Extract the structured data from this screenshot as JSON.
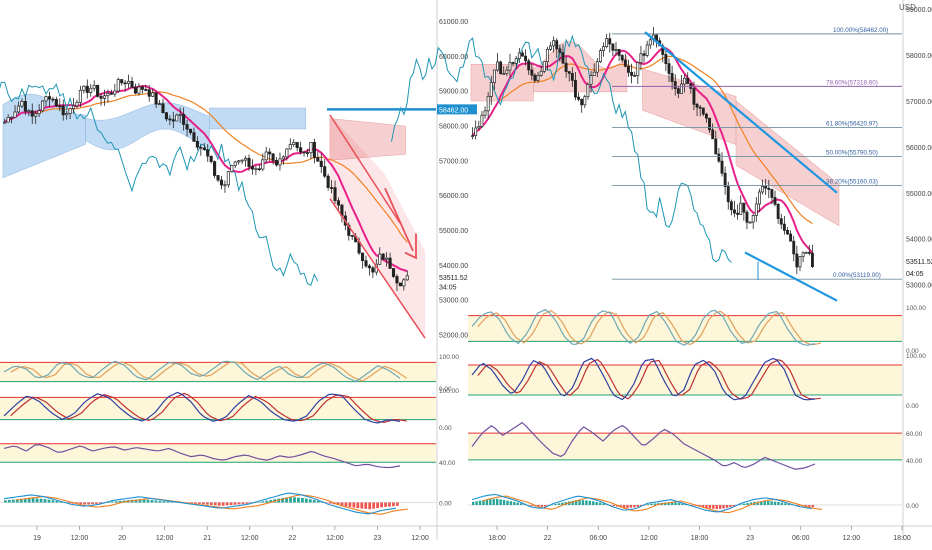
{
  "currency_label": "USD",
  "colors": {
    "up": "#2e2e2e",
    "down": "#2e2e2e",
    "tenkan": "#e8208a",
    "kijun": "#f08020",
    "chikou": "#1e96b4",
    "kumo_bull": "#bcd8f5",
    "kumo_bear": "#f6cccc",
    "channel": "#e8505a",
    "trend": "#1e96e0",
    "fib": "#7090a0",
    "stoch_k": "#6fa8b4",
    "stoch_d": "#e2a05a",
    "rsi": "#7050a0",
    "band_fill": "#fdf6d8",
    "level_hi": "#e83030",
    "level_lo": "#20a070",
    "macd_line": "#1e90d0",
    "macd_signal": "#f08020",
    "hist_pos": "#26a69a",
    "hist_neg": "#ef5350"
  },
  "chart_data": [
    {
      "type": "candlestick",
      "title": "",
      "panel": "left-main",
      "y_ticks": [
        "61000.00",
        "60000.00",
        "59000.00",
        "58000.00",
        "57000.00",
        "56000.00",
        "55000.00",
        "54000.00",
        "53000.00",
        "52000.00"
      ],
      "ylim": [
        51500,
        61600
      ],
      "x_ticks": [
        "19",
        "12:00",
        "20",
        "12:00",
        "21",
        "12:00",
        "22",
        "12:00",
        "23",
        "12:00"
      ],
      "price_marks": [
        {
          "label": "58462.00",
          "value": 58462,
          "highlight": true
        },
        {
          "label": "53511.52",
          "value": 53650,
          "highlight": false
        },
        {
          "label": "34:05",
          "value": 53380,
          "highlight": false
        }
      ],
      "close_path": [
        58100,
        58400,
        58700,
        58200,
        58500,
        58900,
        58600,
        58300,
        58700,
        59000,
        59100,
        58800,
        58900,
        59200,
        59300,
        59000,
        59100,
        58800,
        58400,
        58100,
        58300,
        57900,
        57500,
        57200,
        56600,
        56200,
        56900,
        57100,
        56900,
        56600,
        57200,
        56800,
        57300,
        57600,
        57100,
        57400,
        56900,
        56300,
        55700,
        55100,
        54600,
        54200,
        53700,
        54300,
        54000,
        53500,
        53600
      ],
      "channel_value_ref": {
        "label": "58462.00",
        "value": 58462
      }
    },
    {
      "type": "candlestick",
      "title": "",
      "panel": "right-main",
      "y_ticks": [
        "59000.00",
        "58000.00",
        "57000.00",
        "56000.00",
        "55000.00",
        "54000.00",
        "53000.00"
      ],
      "ylim": [
        52600,
        59200
      ],
      "x_ticks": [
        "18:00",
        "22",
        "06:00",
        "12:00",
        "18:00",
        "23",
        "06:00",
        "12:00",
        "18:00"
      ],
      "price_marks": [
        {
          "label": "53511.52",
          "value": 53511.52
        },
        {
          "label": "04:05",
          "value": 53250
        }
      ],
      "close_path": [
        56300,
        56600,
        57100,
        57800,
        57500,
        57900,
        58100,
        57700,
        57300,
        57900,
        58300,
        58100,
        57600,
        57200,
        56900,
        57500,
        58000,
        58300,
        58100,
        57800,
        57500,
        57800,
        58200,
        58500,
        58100,
        57600,
        57200,
        57600,
        57000,
        56900,
        56400,
        55800,
        55000,
        54500,
        54700,
        54300,
        54900,
        55200,
        54800,
        54300,
        54000,
        53400,
        53700,
        53500
      ],
      "fibonacci": [
        {
          "level": 1.0,
          "label": "100.00%(58462.00)",
          "value": 58462
        },
        {
          "level": 0.786,
          "label": "78.60%(57318.60)",
          "value": 57318.6
        },
        {
          "level": 0.618,
          "label": "61.80%(56420.97)",
          "value": 56420.97
        },
        {
          "level": 0.5,
          "label": "50.00%(55790.50)",
          "value": 55790.5
        },
        {
          "level": 0.382,
          "label": "38.20%(55160.03)",
          "value": 55160.03
        },
        {
          "level": 0.0,
          "label": "0.00%(53119.00)",
          "value": 53119
        }
      ]
    },
    {
      "type": "line",
      "panel": "right-stoch1",
      "y_ticks": [
        "100.00",
        "0.00"
      ],
      "ylim": [
        0,
        100
      ],
      "levels": [
        80,
        20
      ],
      "series": [
        {
          "values": [
            55,
            80,
            90,
            70,
            30,
            15,
            40,
            85,
            95,
            70,
            30,
            10,
            25,
            70,
            92,
            85,
            40,
            15,
            30,
            80,
            90,
            60,
            20,
            10,
            30,
            75,
            95,
            80,
            40,
            15,
            20,
            60,
            85,
            90,
            50,
            20,
            10,
            15
          ]
        }
      ]
    },
    {
      "type": "line",
      "panel": "right-stoch2",
      "y_ticks": [
        "100.00",
        "0.00"
      ],
      "ylim": [
        0,
        100
      ],
      "levels": [
        80,
        20
      ],
      "series": [
        {
          "values": [
            60,
            85,
            70,
            40,
            20,
            50,
            90,
            80,
            45,
            15,
            35,
            85,
            95,
            60,
            20,
            10,
            40,
            88,
            92,
            50,
            15,
            30,
            80,
            90,
            70,
            25,
            10,
            15,
            50,
            85,
            95,
            70,
            20,
            10,
            12
          ]
        }
      ]
    },
    {
      "type": "line",
      "panel": "right-rsi",
      "y_ticks": [
        "60.00",
        "40.00"
      ],
      "ylim": [
        25,
        75
      ],
      "levels": [
        60,
        40
      ],
      "series": [
        {
          "values": [
            50,
            60,
            66,
            58,
            63,
            68,
            60,
            52,
            45,
            42,
            55,
            65,
            60,
            54,
            62,
            66,
            58,
            50,
            56,
            63,
            59,
            52,
            48,
            44,
            40,
            35,
            38,
            34,
            37,
            42,
            39,
            36,
            33,
            34,
            37
          ]
        }
      ]
    },
    {
      "type": "bar",
      "panel": "right-macd",
      "y_ticks": [
        "0.00"
      ],
      "ylim": [
        -1,
        1
      ],
      "values": [
        0.3,
        0.5,
        0.6,
        0.4,
        0.2,
        -0.1,
        -0.2,
        0.1,
        0.3,
        0.5,
        0.4,
        0.2,
        -0.1,
        -0.3,
        -0.2,
        0.1,
        0.2,
        0.3,
        0.1,
        -0.1,
        -0.3,
        -0.4,
        -0.2,
        0.1,
        0.3,
        0.4,
        0.3,
        0.1,
        -0.1,
        -0.2
      ]
    },
    {
      "type": "line",
      "panel": "left-stoch1",
      "y_ticks": [
        "100.00",
        "0.00"
      ],
      "ylim": [
        0,
        100
      ],
      "levels": [
        80,
        20
      ],
      "series": [
        {
          "values": [
            50,
            70,
            60,
            30,
            40,
            80,
            75,
            40,
            30,
            60,
            85,
            70,
            35,
            25,
            55,
            80,
            75,
            45,
            35,
            60,
            85,
            80,
            45,
            25,
            50,
            70,
            40,
            30,
            60,
            80,
            65,
            35,
            20,
            45,
            70,
            55,
            30
          ]
        }
      ]
    },
    {
      "type": "line",
      "panel": "left-stoch2",
      "y_ticks": [
        "100.00",
        "0.00"
      ],
      "ylim": [
        0,
        100
      ],
      "levels": [
        80,
        20
      ],
      "series": [
        {
          "values": [
            30,
            60,
            85,
            70,
            40,
            20,
            35,
            70,
            90,
            80,
            50,
            25,
            15,
            40,
            80,
            95,
            70,
            30,
            15,
            25,
            60,
            85,
            70,
            40,
            20,
            15,
            30,
            70,
            90,
            85,
            50,
            20,
            10,
            20,
            15
          ]
        }
      ]
    },
    {
      "type": "line",
      "panel": "left-rsi",
      "y_ticks": [
        "40.00"
      ],
      "ylim": [
        25,
        75
      ],
      "levels": [
        60,
        40
      ],
      "series": [
        {
          "values": [
            55,
            58,
            52,
            60,
            56,
            50,
            54,
            58,
            52,
            55,
            57,
            53,
            56,
            54,
            52,
            55,
            50,
            46,
            48,
            44,
            42,
            46,
            48,
            44,
            42,
            47,
            45,
            48,
            52,
            47,
            44,
            40,
            36,
            38,
            35,
            34,
            36
          ]
        }
      ]
    },
    {
      "type": "bar",
      "panel": "left-macd",
      "y_ticks": [
        "0.00"
      ],
      "ylim": [
        -1,
        1
      ],
      "values": [
        0.2,
        0.3,
        0.4,
        0.3,
        0.1,
        -0.1,
        -0.2,
        -0.1,
        0.1,
        0.2,
        0.3,
        0.2,
        0.1,
        0.0,
        -0.1,
        -0.2,
        -0.3,
        -0.2,
        -0.1,
        0.1,
        0.3,
        0.5,
        0.4,
        0.2,
        -0.1,
        -0.3,
        -0.5,
        -0.6,
        -0.4,
        -0.3
      ]
    }
  ]
}
